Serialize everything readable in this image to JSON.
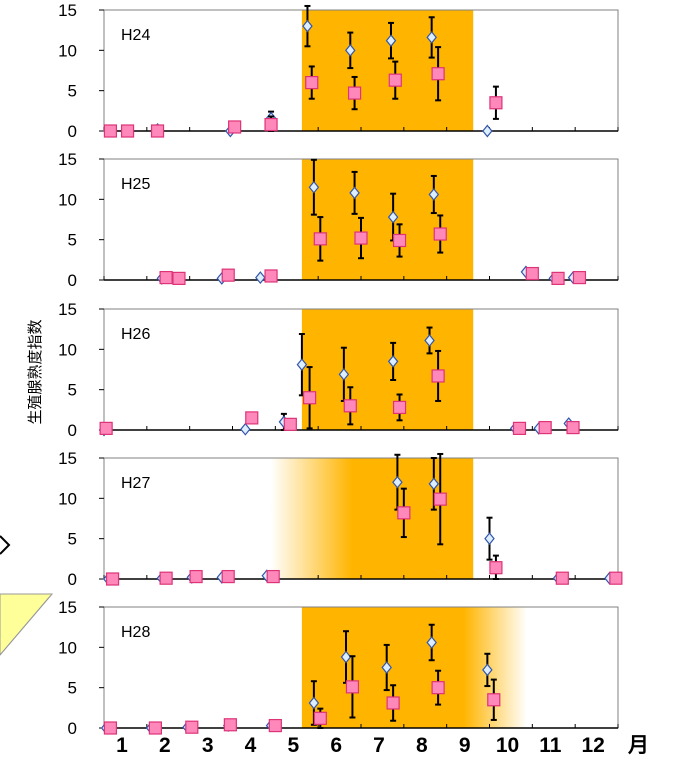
{
  "chart_data": {
    "type": "scatter",
    "ylabel": "生殖腺熟度指数",
    "x_unit": "月",
    "x_ticks": [
      "1",
      "2",
      "3",
      "4",
      "5",
      "6",
      "7",
      "8",
      "9",
      "10",
      "11",
      "12"
    ],
    "y_ticks": [
      "0",
      "5",
      "10",
      "15"
    ],
    "ylim": [
      0,
      15
    ],
    "xlim": [
      1,
      13
    ],
    "colors": {
      "diamond_fill": "#DDEEFF",
      "diamond_stroke": "#3355AA",
      "square_fill": "#FF88BB",
      "square_stroke": "#DD3377",
      "spawning_band": "#FFB500",
      "errorbar": "#000000",
      "callout": "#FFFF99"
    },
    "panels": [
      {
        "label": "H24",
        "spawning_band": {
          "start": 5.62,
          "end": 9.62,
          "fade_left": false,
          "fade_right": false
        },
        "series": [
          {
            "marker": "diamond",
            "points": [
              {
                "x": 1.1,
                "y": 0
              },
              {
                "x": 2.25,
                "y": 0.2
              },
              {
                "x": 3.95,
                "y": 0
              },
              {
                "x": 4.9,
                "y": 1.6,
                "err": 0.8
              },
              {
                "x": 5.75,
                "y": 13,
                "err": 2.5
              },
              {
                "x": 6.75,
                "y": 10,
                "err": 2.2
              },
              {
                "x": 7.7,
                "y": 11.2,
                "err": 2.2
              },
              {
                "x": 8.65,
                "y": 11.6,
                "err": 2.5
              },
              {
                "x": 9.95,
                "y": 0
              }
            ]
          },
          {
            "marker": "square",
            "points": [
              {
                "x": 1.15,
                "y": 0
              },
              {
                "x": 1.55,
                "y": 0
              },
              {
                "x": 2.25,
                "y": 0
              },
              {
                "x": 4.05,
                "y": 0.5
              },
              {
                "x": 4.9,
                "y": 0.8,
                "err": 1.0
              },
              {
                "x": 5.85,
                "y": 6,
                "err": 2.0
              },
              {
                "x": 6.85,
                "y": 4.7,
                "err": 2.0
              },
              {
                "x": 7.8,
                "y": 6.3,
                "err": 2.3
              },
              {
                "x": 8.8,
                "y": 7.1,
                "err": 3.3
              },
              {
                "x": 10.15,
                "y": 3.5,
                "err": 2.0
              }
            ]
          }
        ]
      },
      {
        "label": "H25",
        "spawning_band": {
          "start": 5.62,
          "end": 9.62,
          "fade_left": false,
          "fade_right": false
        },
        "series": [
          {
            "marker": "diamond",
            "points": [
              {
                "x": 2.35,
                "y": 0.2
              },
              {
                "x": 2.65,
                "y": 0.2
              },
              {
                "x": 3.75,
                "y": 0.2
              },
              {
                "x": 4.65,
                "y": 0.3
              },
              {
                "x": 5.9,
                "y": 11.5,
                "err": 3.4
              },
              {
                "x": 6.85,
                "y": 10.8,
                "err": 2.6
              },
              {
                "x": 7.75,
                "y": 7.8,
                "err": 2.9
              },
              {
                "x": 8.7,
                "y": 10.6,
                "err": 2.3
              },
              {
                "x": 10.85,
                "y": 1.0
              },
              {
                "x": 11.5,
                "y": 0.2
              },
              {
                "x": 11.95,
                "y": 0.3
              }
            ]
          },
          {
            "marker": "square",
            "points": [
              {
                "x": 2.45,
                "y": 0.3
              },
              {
                "x": 2.75,
                "y": 0.2
              },
              {
                "x": 3.9,
                "y": 0.6
              },
              {
                "x": 4.9,
                "y": 0.5
              },
              {
                "x": 6.05,
                "y": 5.1,
                "err": 2.7
              },
              {
                "x": 7.0,
                "y": 5.2,
                "err": 2.5
              },
              {
                "x": 7.9,
                "y": 4.9,
                "err": 2.0
              },
              {
                "x": 8.85,
                "y": 5.7,
                "err": 2.3
              },
              {
                "x": 11.0,
                "y": 0.8
              },
              {
                "x": 11.6,
                "y": 0.2
              },
              {
                "x": 12.1,
                "y": 0.3
              }
            ]
          }
        ]
      },
      {
        "label": "H26",
        "spawning_band": {
          "start": 5.62,
          "end": 9.62,
          "fade_left": false,
          "fade_right": false
        },
        "series": [
          {
            "marker": "diamond",
            "points": [
              {
                "x": 1.0,
                "y": 0
              },
              {
                "x": 4.3,
                "y": 0.1
              },
              {
                "x": 5.2,
                "y": 1.0,
                "err": 1.0
              },
              {
                "x": 5.62,
                "y": 8.1,
                "err": 3.8
              },
              {
                "x": 6.6,
                "y": 6.9,
                "err": 3.3
              },
              {
                "x": 7.75,
                "y": 8.5,
                "err": 2.3
              },
              {
                "x": 8.6,
                "y": 11.1,
                "err": 1.6
              },
              {
                "x": 10.6,
                "y": 0.2
              },
              {
                "x": 11.15,
                "y": 0.2
              },
              {
                "x": 11.85,
                "y": 0.8
              }
            ]
          },
          {
            "marker": "square",
            "points": [
              {
                "x": 1.05,
                "y": 0.2
              },
              {
                "x": 4.45,
                "y": 1.5
              },
              {
                "x": 5.35,
                "y": 0.7
              },
              {
                "x": 5.8,
                "y": 4.0,
                "err": 3.8
              },
              {
                "x": 6.75,
                "y": 3.0,
                "err": 2.3
              },
              {
                "x": 7.9,
                "y": 2.8,
                "err": 1.6
              },
              {
                "x": 8.8,
                "y": 6.7,
                "err": 3.1
              },
              {
                "x": 10.7,
                "y": 0.2
              },
              {
                "x": 11.3,
                "y": 0.3
              },
              {
                "x": 11.95,
                "y": 0.3
              }
            ]
          }
        ]
      },
      {
        "label": "H27",
        "spawning_band": {
          "start": 4.9,
          "end": 9.62,
          "fade_left": true,
          "fade_right": false
        },
        "series": [
          {
            "marker": "diamond",
            "points": [
              {
                "x": 1.1,
                "y": 0
              },
              {
                "x": 2.35,
                "y": 0.1
              },
              {
                "x": 3.05,
                "y": 0.2
              },
              {
                "x": 3.75,
                "y": 0.2
              },
              {
                "x": 4.8,
                "y": 0.4
              },
              {
                "x": 7.85,
                "y": 12,
                "err": 3.4
              },
              {
                "x": 8.7,
                "y": 11.8,
                "err": 3.2
              },
              {
                "x": 10.0,
                "y": 5.0,
                "err": 2.6
              },
              {
                "x": 11.6,
                "y": 0.1
              },
              {
                "x": 12.8,
                "y": 0.1
              }
            ]
          },
          {
            "marker": "square",
            "points": [
              {
                "x": 1.2,
                "y": 0
              },
              {
                "x": 2.45,
                "y": 0.1
              },
              {
                "x": 3.15,
                "y": 0.3
              },
              {
                "x": 3.9,
                "y": 0.3
              },
              {
                "x": 4.95,
                "y": 0.3
              },
              {
                "x": 8.0,
                "y": 8.2,
                "err": 3.0
              },
              {
                "x": 8.85,
                "y": 9.9,
                "err": 5.6
              },
              {
                "x": 10.15,
                "y": 1.4,
                "err": 1.5
              },
              {
                "x": 11.7,
                "y": 0.1
              },
              {
                "x": 12.95,
                "y": 0.1
              }
            ]
          }
        ]
      },
      {
        "label": "H28",
        "spawning_band": {
          "start": 5.62,
          "end": 9.62,
          "fade_left": false,
          "fade_right": true
        },
        "series": [
          {
            "marker": "diamond",
            "points": [
              {
                "x": 1.05,
                "y": 0
              },
              {
                "x": 2.1,
                "y": 0
              },
              {
                "x": 2.95,
                "y": 0.1
              },
              {
                "x": 3.9,
                "y": 0.3
              },
              {
                "x": 4.9,
                "y": 0.3
              },
              {
                "x": 5.9,
                "y": 3.1,
                "err": 2.7
              },
              {
                "x": 6.65,
                "y": 8.8,
                "err": 3.2
              },
              {
                "x": 7.6,
                "y": 7.5,
                "err": 2.8
              },
              {
                "x": 8.65,
                "y": 10.6,
                "err": 2.2
              },
              {
                "x": 9.95,
                "y": 7.2,
                "err": 2.0
              }
            ]
          },
          {
            "marker": "square",
            "points": [
              {
                "x": 1.15,
                "y": 0
              },
              {
                "x": 2.2,
                "y": 0
              },
              {
                "x": 3.05,
                "y": 0.1
              },
              {
                "x": 3.95,
                "y": 0.4
              },
              {
                "x": 5.0,
                "y": 0.3
              },
              {
                "x": 6.05,
                "y": 1.2,
                "err": 1.2
              },
              {
                "x": 6.8,
                "y": 5.1,
                "err": 3.8
              },
              {
                "x": 7.75,
                "y": 3.1,
                "err": 2.2
              },
              {
                "x": 8.8,
                "y": 5.0,
                "err": 2.1
              },
              {
                "x": 10.1,
                "y": 3.5,
                "err": 2.5
              }
            ]
          }
        ]
      }
    ]
  }
}
